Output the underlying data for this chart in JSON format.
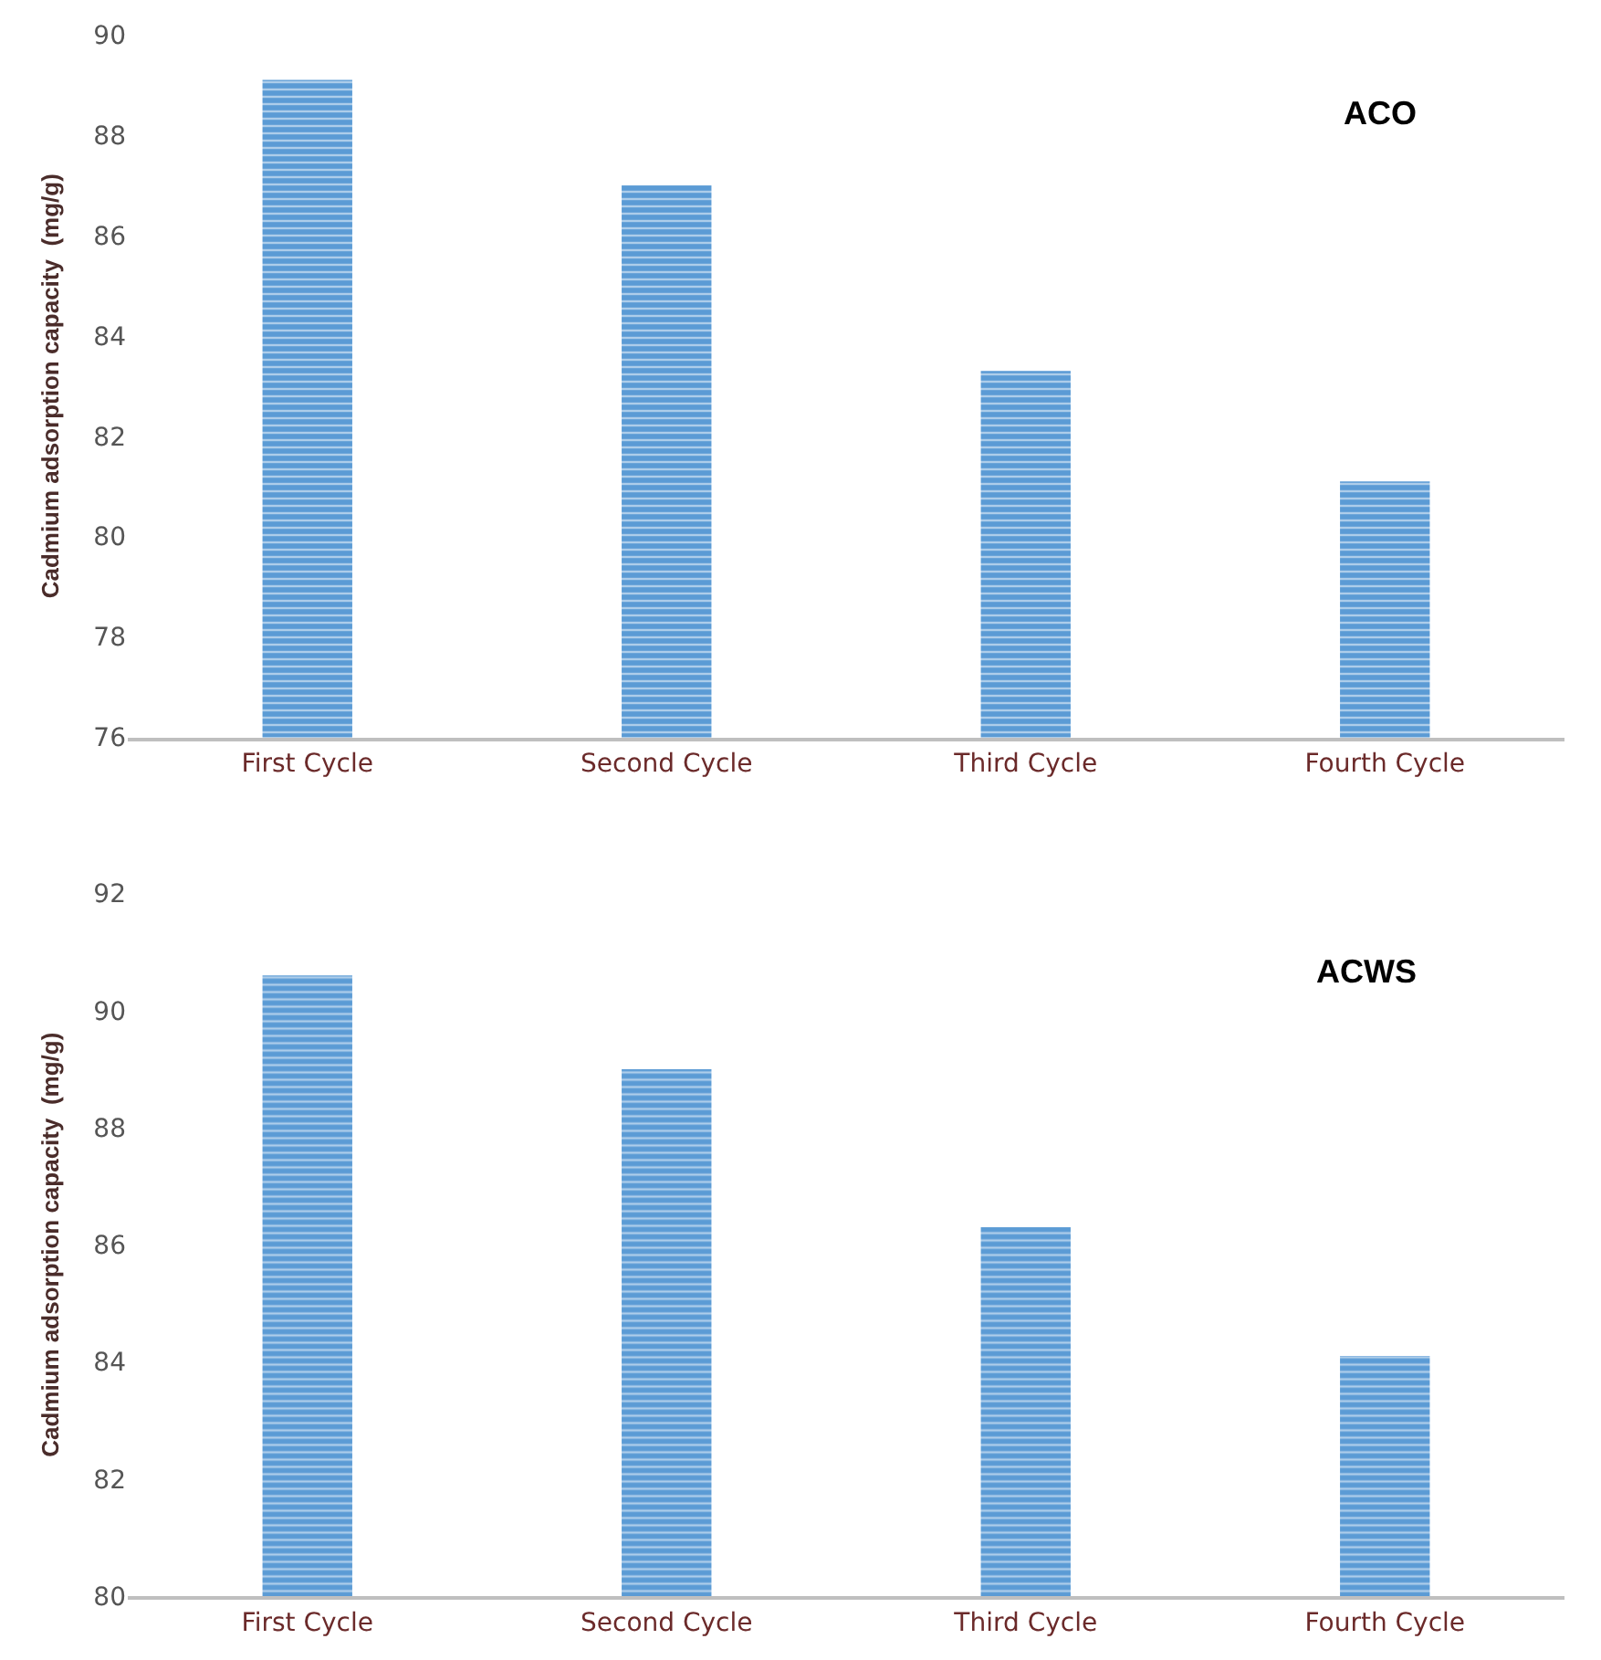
{
  "chart_data": [
    {
      "type": "bar",
      "categories": [
        "First Cycle",
        "Second Cycle",
        "Third Cycle",
        "Fourth Cycle"
      ],
      "values": [
        89.1,
        87.0,
        83.3,
        81.1
      ],
      "color": "#5b9bd5",
      "ylabel": "Cadmium adsorption capacity  (mg/g)",
      "ylim": [
        76,
        90
      ],
      "yticks": [
        76,
        78,
        80,
        82,
        84,
        86,
        88,
        90
      ],
      "annotations": [
        "ACO"
      ]
    },
    {
      "type": "bar",
      "categories": [
        "First Cycle",
        "Second Cycle",
        "Third Cycle",
        "Fourth Cycle"
      ],
      "values": [
        90.6,
        89.0,
        86.3,
        84.1
      ],
      "color": "#5b9bd5",
      "ylabel": "Cadmium adsorption capacity  (mg/g)",
      "ylim": [
        80,
        92
      ],
      "yticks": [
        80,
        82,
        84,
        86,
        88,
        90,
        92
      ],
      "annotations": [
        "ACWS"
      ]
    }
  ]
}
